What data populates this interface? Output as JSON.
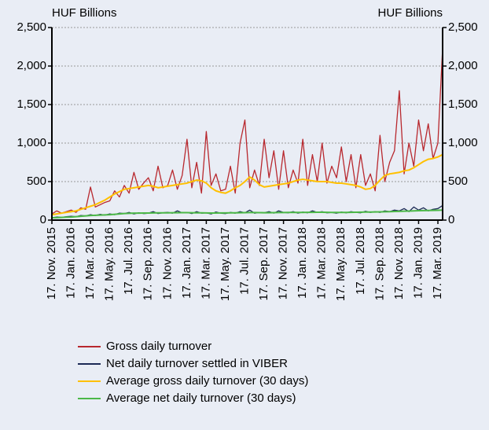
{
  "chart_data": {
    "type": "line",
    "y_label": "HUF Billions",
    "y2_label": "HUF Billions",
    "categories": [
      "17. Nov. 2015",
      null,
      null,
      null,
      "17. Jan. 2016",
      null,
      null,
      null,
      "17. Mar. 2016",
      null,
      null,
      null,
      "17. May. 2016",
      null,
      null,
      null,
      "17. Jul. 2016",
      null,
      null,
      null,
      "17. Sep. 2016",
      null,
      null,
      null,
      "17. Nov. 2016",
      null,
      null,
      null,
      "17. Jan. 2017",
      null,
      null,
      null,
      "17. Mar. 2017",
      null,
      null,
      null,
      "17. May. 2017",
      null,
      null,
      null,
      "17. Jul. 2017",
      null,
      null,
      null,
      "17. Sep. 2017",
      null,
      null,
      null,
      "17. Nov. 2017",
      null,
      null,
      null,
      "17. Jan. 2018",
      null,
      null,
      null,
      "17. Mar. 2018",
      null,
      null,
      null,
      "17. May. 2018",
      null,
      null,
      null,
      "17. Jul. 2018",
      null,
      null,
      null,
      "17. Sep. 2018",
      null,
      null,
      null,
      "17. Nov. 2018",
      null,
      null,
      null,
      "17. Jan. 2019",
      null,
      null,
      null,
      "17. Mar. 2019",
      null
    ],
    "series": [
      {
        "name": "Gross daily turnover",
        "color": "#b8282e",
        "width": 1.3,
        "values": [
          80,
          120,
          90,
          110,
          130,
          100,
          160,
          140,
          430,
          170,
          200,
          230,
          250,
          380,
          300,
          450,
          350,
          620,
          400,
          480,
          550,
          380,
          700,
          420,
          450,
          650,
          400,
          580,
          1050,
          420,
          750,
          350,
          1150,
          450,
          600,
          380,
          400,
          700,
          350,
          1000,
          1300,
          420,
          650,
          450,
          1050,
          550,
          900,
          400,
          900,
          420,
          650,
          480,
          1050,
          450,
          850,
          500,
          1000,
          480,
          700,
          550,
          950,
          500,
          850,
          420,
          850,
          450,
          600,
          380,
          1100,
          500,
          750,
          900,
          1680,
          600,
          1000,
          700,
          1300,
          900,
          1250,
          800,
          1000,
          2230
        ]
      },
      {
        "name": "Net daily turnover settled in VIBER",
        "color": "#1c2a55",
        "width": 1.3,
        "values": [
          30,
          40,
          35,
          45,
          50,
          45,
          60,
          55,
          70,
          60,
          75,
          65,
          80,
          70,
          90,
          85,
          100,
          80,
          95,
          85,
          90,
          110,
          85,
          95,
          100,
          90,
          120,
          95,
          100,
          85,
          110,
          90,
          95,
          80,
          105,
          90,
          85,
          100,
          90,
          110,
          95,
          130,
          90,
          100,
          95,
          110,
          90,
          120,
          100,
          95,
          110,
          90,
          105,
          95,
          120,
          100,
          110,
          95,
          100,
          90,
          105,
          95,
          110,
          100,
          95,
          115,
          100,
          110,
          100,
          120,
          110,
          130,
          120,
          150,
          110,
          170,
          130,
          160,
          120,
          140,
          150,
          190
        ]
      },
      {
        "name": "Average gross daily turnover (30 days)",
        "color": "#ffc000",
        "width": 2,
        "values": [
          70,
          80,
          90,
          100,
          110,
          120,
          140,
          160,
          180,
          200,
          230,
          260,
          300,
          340,
          370,
          400,
          410,
          420,
          430,
          440,
          450,
          440,
          420,
          430,
          440,
          450,
          460,
          470,
          480,
          500,
          520,
          510,
          480,
          420,
          380,
          360,
          350,
          380,
          420,
          450,
          500,
          560,
          520,
          460,
          430,
          440,
          450,
          460,
          470,
          480,
          500,
          520,
          530,
          520,
          510,
          500,
          500,
          500,
          490,
          480,
          480,
          470,
          460,
          450,
          430,
          400,
          410,
          450,
          520,
          580,
          600,
          610,
          620,
          640,
          650,
          680,
          720,
          760,
          790,
          800,
          820,
          850
        ]
      },
      {
        "name": "Average net daily turnover (30 days)",
        "color": "#4cb848",
        "width": 2,
        "values": [
          30,
          32,
          35,
          38,
          40,
          45,
          50,
          55,
          60,
          62,
          65,
          68,
          70,
          75,
          80,
          85,
          88,
          90,
          90,
          92,
          92,
          93,
          94,
          95,
          95,
          96,
          96,
          97,
          97,
          96,
          95,
          94,
          93,
          92,
          92,
          93,
          93,
          94,
          95,
          96,
          97,
          98,
          98,
          97,
          96,
          96,
          97,
          98,
          98,
          99,
          100,
          100,
          100,
          101,
          101,
          102,
          102,
          101,
          100,
          100,
          100,
          100,
          101,
          102,
          103,
          104,
          105,
          106,
          107,
          108,
          110,
          112,
          114,
          116,
          118,
          120,
          122,
          124,
          125,
          126,
          128,
          130
        ]
      }
    ],
    "ylim": [
      0,
      2500
    ],
    "yticks": [
      0,
      {
        "value": 500,
        "label": "500"
      },
      {
        "value": 1000,
        "label": "1,000"
      },
      {
        "value": 1500,
        "label": "1,500"
      },
      {
        "value": 2000,
        "label": "2,000"
      },
      {
        "value": 2500,
        "label": "2,500"
      }
    ],
    "y2lim": [
      0,
      2500
    ],
    "y2ticks": [
      0,
      {
        "value": 500,
        "label": "500"
      },
      {
        "value": 1000,
        "label": "1,000"
      },
      {
        "value": 1500,
        "label": "1,500"
      },
      {
        "value": 2000,
        "label": "2,000"
      },
      {
        "value": 2500,
        "label": "2,500"
      }
    ],
    "grid": true,
    "legend": "bottom"
  }
}
